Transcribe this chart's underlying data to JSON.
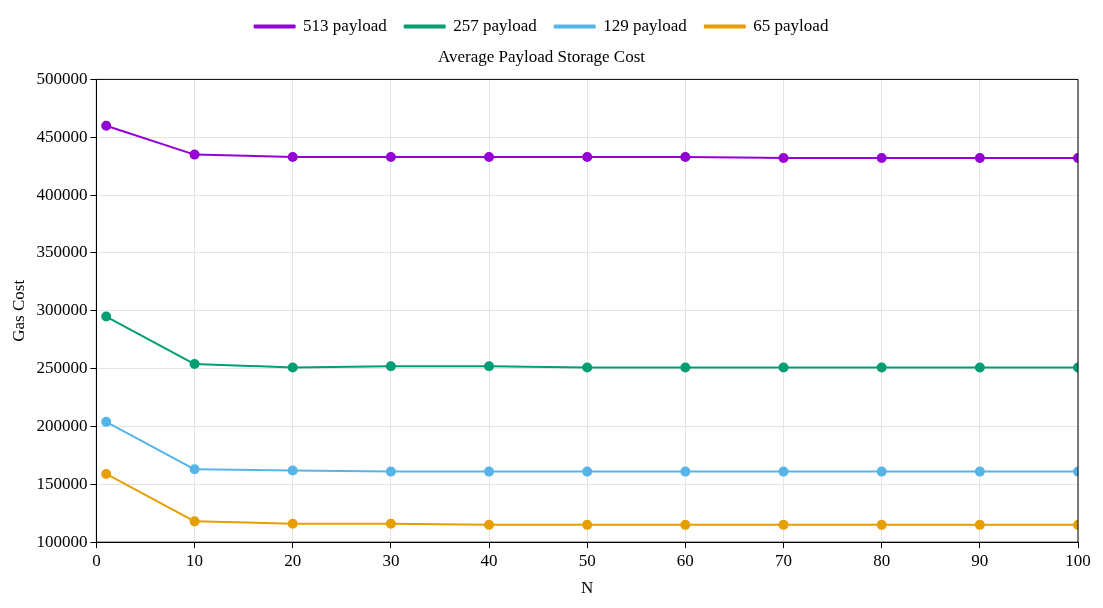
{
  "chart_data": {
    "type": "line",
    "title": "Average Payload Storage Cost",
    "xlabel": "N",
    "ylabel": "Gas Cost",
    "x": [
      1,
      10,
      20,
      30,
      40,
      50,
      60,
      70,
      80,
      90,
      100
    ],
    "series": [
      {
        "name": "513 payload",
        "color": "#9400d3",
        "values": [
          460000,
          435000,
          433000,
          433000,
          433000,
          433000,
          433000,
          432000,
          432000,
          432000,
          432000
        ]
      },
      {
        "name": "257 payload",
        "color": "#009e73",
        "values": [
          295000,
          254000,
          251000,
          252000,
          252000,
          251000,
          251000,
          251000,
          251000,
          251000,
          251000
        ]
      },
      {
        "name": "129 payload",
        "color": "#56b4e9",
        "values": [
          204000,
          163000,
          162000,
          161000,
          161000,
          161000,
          161000,
          161000,
          161000,
          161000,
          161000
        ]
      },
      {
        "name": "65 payload",
        "color": "#e69f00",
        "values": [
          159000,
          118000,
          116000,
          116000,
          115000,
          115000,
          115000,
          115000,
          115000,
          115000,
          115000
        ]
      }
    ],
    "xlim": [
      0,
      100
    ],
    "xticks": [
      0,
      10,
      20,
      30,
      40,
      50,
      60,
      70,
      80,
      90,
      100
    ],
    "ylim": [
      100000,
      500000
    ],
    "yticks": [
      100000,
      150000,
      200000,
      250000,
      300000,
      350000,
      400000,
      450000,
      500000
    ],
    "grid": true,
    "legend": "top",
    "marker": "circle",
    "line_style": "solid"
  }
}
